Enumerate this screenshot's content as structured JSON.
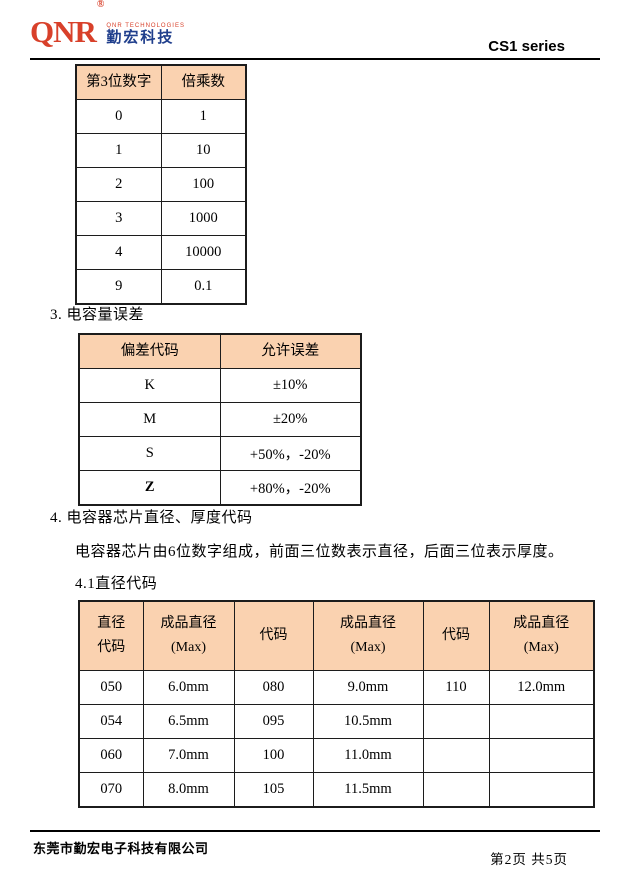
{
  "header": {
    "logo_brand": "QNR",
    "logo_reg": "®",
    "logo_tagline": "QNR TECHNOLOGIES",
    "logo_cn": "勤宏科技",
    "series": "CS1 series"
  },
  "multiplier_table": {
    "headers": [
      "第3位数字",
      "倍乘数"
    ],
    "rows": [
      [
        "0",
        "1"
      ],
      [
        "1",
        "10"
      ],
      [
        "2",
        "100"
      ],
      [
        "3",
        "1000"
      ],
      [
        "4",
        "10000"
      ],
      [
        "9",
        "0.1"
      ]
    ]
  },
  "section3": {
    "title": "3. 电容量误差"
  },
  "tolerance_table": {
    "headers": [
      "偏差代码",
      "允许误差"
    ],
    "rows": [
      [
        "K",
        "±10%"
      ],
      [
        "M",
        "±20%"
      ],
      [
        "S",
        "+50%，-20%"
      ],
      [
        "Z",
        "+80%，-20%"
      ]
    ]
  },
  "section4": {
    "title": "4. 电容器芯片直径、厚度代码",
    "body": "电容器芯片由6位数字组成，前面三位数表示直径，后面三位表示厚度。",
    "subtitle": "4.1直径代码"
  },
  "diameter_table": {
    "headers": [
      "直径\n代码",
      "成品直径\n(Max)",
      "代码",
      "成品直径\n(Max)",
      "代码",
      "成品直径\n(Max)"
    ],
    "rows": [
      [
        "050",
        "6.0mm",
        "080",
        "9.0mm",
        "110",
        "12.0mm"
      ],
      [
        "054",
        "6.5mm",
        "095",
        "10.5mm",
        "",
        ""
      ],
      [
        "060",
        "7.0mm",
        "100",
        "11.0mm",
        "",
        ""
      ],
      [
        "070",
        "8.0mm",
        "105",
        "11.5mm",
        "",
        ""
      ]
    ]
  },
  "footer": {
    "company": "东莞市勤宏电子科技有限公司",
    "page": "第2页 共5页"
  },
  "colors": {
    "table_header_bg": "#FAD2B0",
    "logo_red": "#D8402A",
    "logo_blue": "#1F3E8C"
  }
}
